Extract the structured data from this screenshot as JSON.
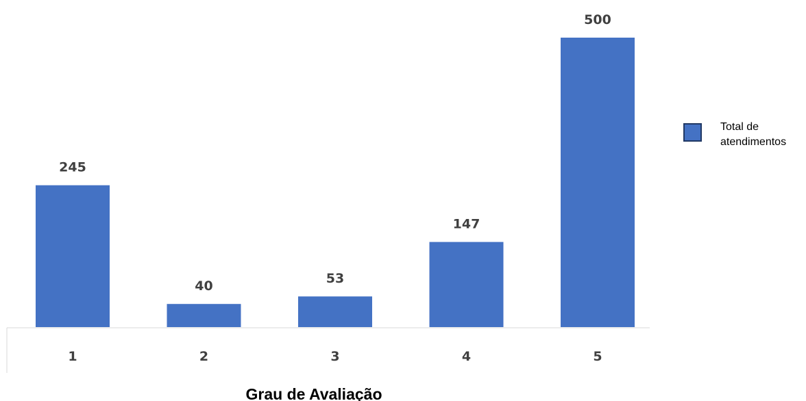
{
  "chart_data": {
    "type": "bar",
    "categories": [
      "1",
      "2",
      "3",
      "4",
      "5"
    ],
    "series": [
      {
        "name": "Total de atendimentos",
        "values": [
          245,
          40,
          53,
          147,
          500
        ]
      }
    ],
    "title": "",
    "xlabel": "Grau de Avaliação",
    "ylabel": "",
    "ylim": [
      0,
      500
    ],
    "grid": false,
    "legend_position": "right",
    "data_labels": true,
    "colors": {
      "bar": "#4472C4",
      "bar_border": "#2F528F",
      "axis": "#D9D9D9",
      "labels": "#404040"
    }
  },
  "legend": {
    "label_line1": "Total de",
    "label_line2": "atendimentos"
  }
}
